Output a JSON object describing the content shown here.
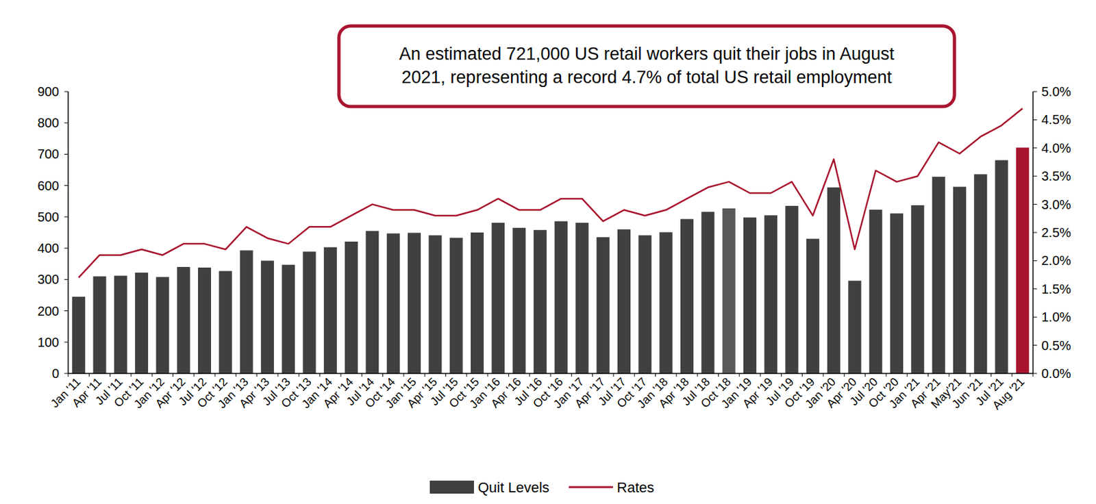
{
  "chart_data": {
    "type": "bar",
    "annotation": [
      "An estimated 721,000 US retail workers quit their jobs in August",
      "2021, representing a record 4.7% of total US retail employment"
    ],
    "categories": [
      "Jan '11",
      "Apr '11",
      "Jul '11",
      "Oct '11",
      "Jan '12",
      "Apr '12",
      "Jul '12",
      "Oct '12",
      "Jan '13",
      "Apr '13",
      "Jul '13",
      "Oct '13",
      "Jan '14",
      "Apr '14",
      "Jul '14",
      "Oct '14",
      "Jan '15",
      "Apr '15",
      "Jul '15",
      "Oct '15",
      "Jan '16",
      "Apr '16",
      "Jul '16",
      "Oct '16",
      "Jan '17",
      "Apr '17",
      "Jul '17",
      "Oct '17",
      "Jan '18",
      "Apr '18",
      "Jul '18",
      "Oct '18",
      "Jan '19",
      "Apr '19",
      "Jul '19",
      "Oct '19",
      "Jan '20",
      "Apr '20",
      "Jul '20",
      "Oct '20",
      "Jan '21",
      "Apr '21",
      "May'21",
      "Jun '21",
      "Jul '21",
      "Aug '21"
    ],
    "series": [
      {
        "name": "Quit Levels",
        "type": "bar",
        "color": "#404040",
        "colors": [
          "#404040",
          "#404040",
          "#404040",
          "#404040",
          "#404040",
          "#404040",
          "#404040",
          "#404040",
          "#404040",
          "#404040",
          "#404040",
          "#404040",
          "#404040",
          "#404040",
          "#404040",
          "#404040",
          "#404040",
          "#404040",
          "#404040",
          "#404040",
          "#404040",
          "#404040",
          "#404040",
          "#404040",
          "#404040",
          "#404040",
          "#404040",
          "#404040",
          "#404040",
          "#404040",
          "#404040",
          "#595959",
          "#404040",
          "#404040",
          "#404040",
          "#404040",
          "#404040",
          "#404040",
          "#404040",
          "#404040",
          "#404040",
          "#404040",
          "#404040",
          "#404040",
          "#404040",
          "#a8142e"
        ],
        "values": [
          245,
          310,
          312,
          322,
          308,
          340,
          338,
          327,
          393,
          360,
          347,
          389,
          403,
          421,
          455,
          447,
          449,
          441,
          433,
          450,
          481,
          465,
          458,
          486,
          481,
          435,
          460,
          441,
          451,
          493,
          516,
          527,
          498,
          505,
          535,
          430,
          594,
          296,
          523,
          511,
          537,
          628,
          596,
          636,
          681,
          721
        ]
      },
      {
        "name": "Rates",
        "type": "line",
        "axis": "y2",
        "color": "#a8142e",
        "values": [
          1.7,
          2.1,
          2.1,
          2.2,
          2.1,
          2.3,
          2.3,
          2.2,
          2.6,
          2.4,
          2.3,
          2.6,
          2.6,
          2.8,
          3.0,
          2.9,
          2.9,
          2.8,
          2.8,
          2.9,
          3.1,
          2.9,
          2.9,
          3.1,
          3.1,
          2.7,
          2.9,
          2.8,
          2.9,
          3.1,
          3.3,
          3.4,
          3.2,
          3.2,
          3.4,
          2.8,
          3.8,
          2.2,
          3.6,
          3.4,
          3.5,
          4.1,
          3.9,
          4.2,
          4.4,
          4.7
        ]
      }
    ],
    "ylim": [
      0,
      900
    ],
    "yticks": [
      0,
      100,
      200,
      300,
      400,
      500,
      600,
      700,
      800,
      900
    ],
    "y2lim": [
      0,
      5
    ],
    "y2ticks": [
      {
        "value": 0,
        "label": "0.0%"
      },
      {
        "value": 0.5,
        "label": "0.5%"
      },
      {
        "value": 1,
        "label": "1.0%"
      },
      {
        "value": 1.5,
        "label": "1.5%"
      },
      {
        "value": 2,
        "label": "2.0%"
      },
      {
        "value": 2.5,
        "label": "2.5%"
      },
      {
        "value": 3,
        "label": "3.0%"
      },
      {
        "value": 3.5,
        "label": "3.5%"
      },
      {
        "value": 4,
        "label": "4.0%"
      },
      {
        "value": 4.5,
        "label": "4.5%"
      },
      {
        "value": 5,
        "label": "5.0%"
      }
    ],
    "grid": false,
    "legend": "bottom"
  }
}
